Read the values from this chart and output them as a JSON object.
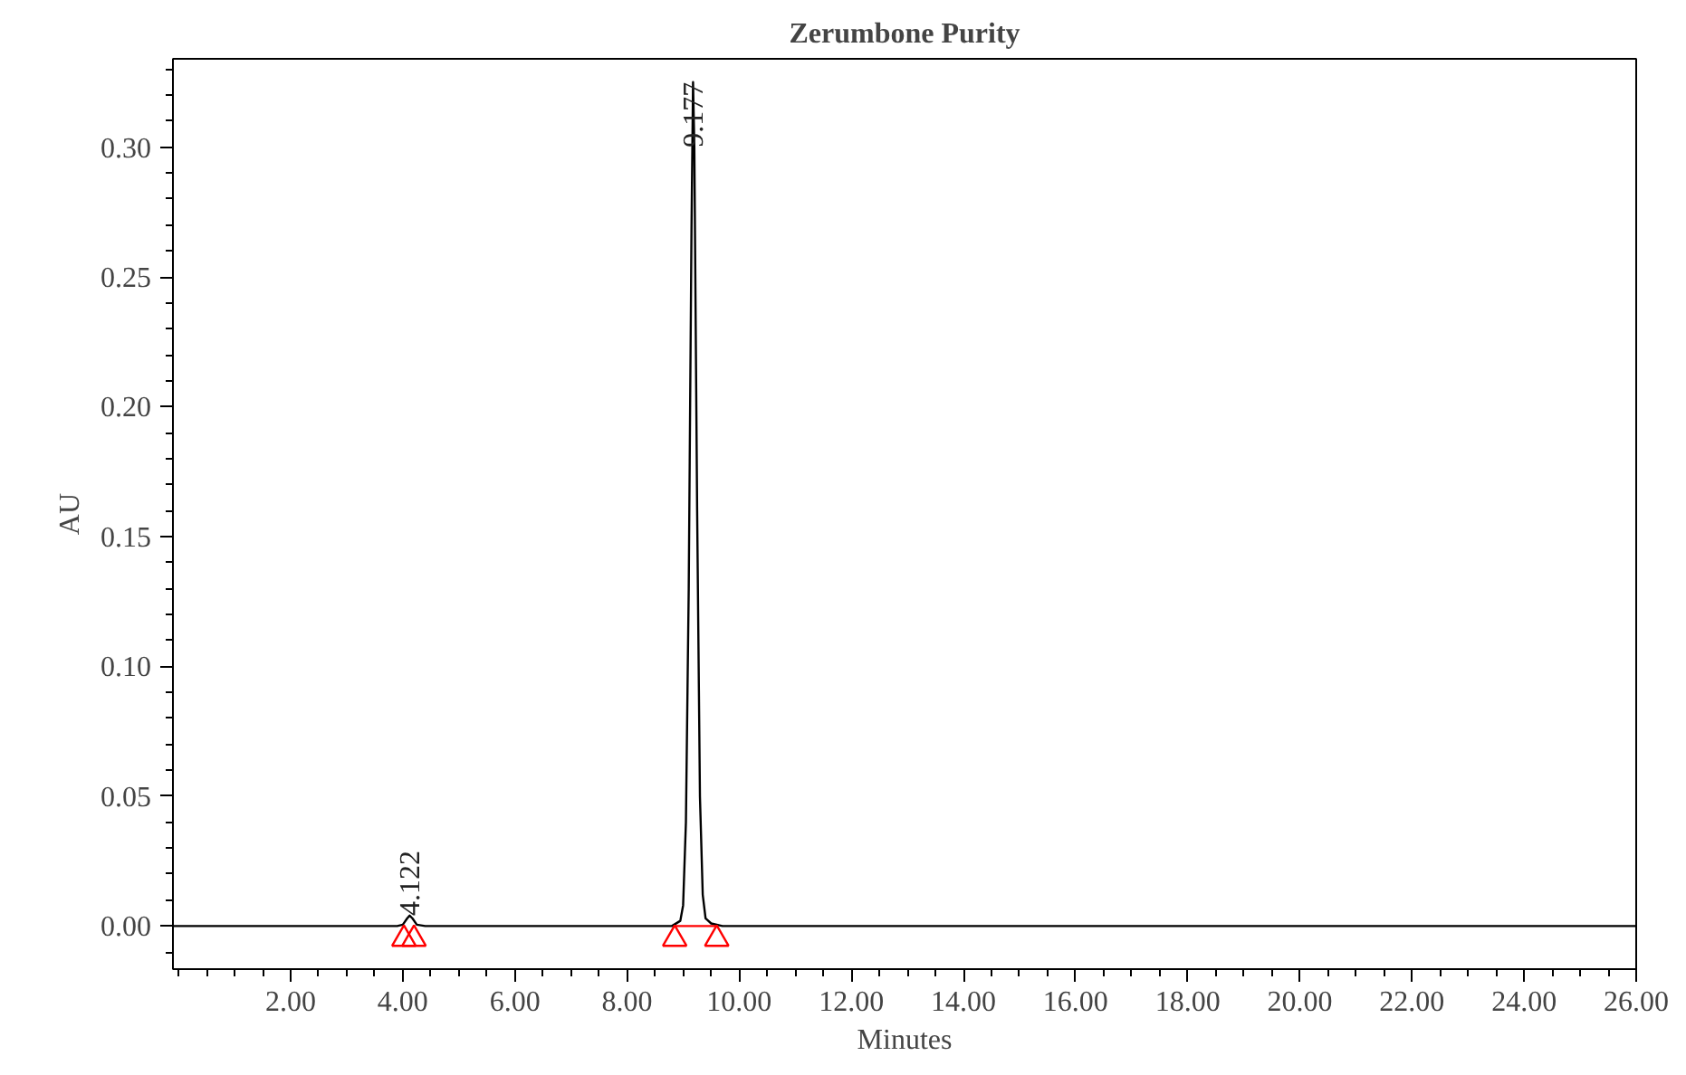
{
  "chart_data": {
    "type": "line",
    "title": "Zerumbone Purity",
    "xlabel": "Minutes",
    "ylabel": "AU",
    "xlim": [
      -0.1,
      26.0
    ],
    "ylim": [
      -0.0166,
      0.334
    ],
    "xticks": [
      {
        "value": 2,
        "label": "2.00"
      },
      {
        "value": 4,
        "label": "4.00"
      },
      {
        "value": 6,
        "label": "6.00"
      },
      {
        "value": 8,
        "label": "8.00"
      },
      {
        "value": 10,
        "label": "10.00"
      },
      {
        "value": 12,
        "label": "12.00"
      },
      {
        "value": 14,
        "label": "14.00"
      },
      {
        "value": 16,
        "label": "16.00"
      },
      {
        "value": 18,
        "label": "18.00"
      },
      {
        "value": 20,
        "label": "20.00"
      },
      {
        "value": 22,
        "label": "22.00"
      },
      {
        "value": 24,
        "label": "24.00"
      },
      {
        "value": 26,
        "label": "26.00"
      }
    ],
    "yticks": [
      {
        "value": 0,
        "label": "0.00"
      },
      {
        "value": 0.05,
        "label": "0.05"
      },
      {
        "value": 0.1,
        "label": "0.10"
      },
      {
        "value": 0.15,
        "label": "0.15"
      },
      {
        "value": 0.2,
        "label": "0.20"
      },
      {
        "value": 0.25,
        "label": "0.25"
      },
      {
        "value": 0.3,
        "label": "0.30"
      }
    ],
    "grid": false,
    "marker": "none",
    "line_style": "solid",
    "series": [
      {
        "color": "#000000",
        "x": [
          -0.1,
          2.0,
          3.5,
          3.9,
          4.0,
          4.08,
          4.122,
          4.17,
          4.25,
          4.4,
          5.0,
          6.5,
          8.0,
          8.8,
          8.95,
          9.0,
          9.05,
          9.1,
          9.15,
          9.177,
          9.2,
          9.25,
          9.3,
          9.35,
          9.4,
          9.5,
          9.7,
          10.0,
          12.0,
          16.0,
          20.0,
          23.5,
          24.5,
          26.0
        ],
        "values": [
          0.0,
          0.0,
          0.0,
          0.0,
          0.0005,
          0.003,
          0.004,
          0.003,
          0.0005,
          0.0,
          0.0,
          0.0,
          0.0,
          0.0,
          0.002,
          0.008,
          0.04,
          0.13,
          0.27,
          0.325,
          0.3,
          0.16,
          0.05,
          0.012,
          0.003,
          0.001,
          0.0,
          0.0,
          0.0,
          0.0,
          0.0,
          0.0,
          0.0,
          0.0
        ]
      },
      {
        "type": "line",
        "color": "#ff0000",
        "x": [
          8.85,
          9.6
        ],
        "values": [
          0.0,
          0.0
        ]
      },
      {
        "type": "scatter",
        "marker": "triangle",
        "color": "#ff0000",
        "x": [
          4.02,
          4.2,
          8.85,
          9.6
        ],
        "values": [
          -0.005,
          -0.005,
          -0.005,
          -0.005
        ]
      }
    ],
    "annotations": [
      {
        "text": "4.122",
        "x": 4.122,
        "y": 0.004
      },
      {
        "text": "9.177",
        "x": 9.177,
        "y": 0.325
      }
    ]
  }
}
